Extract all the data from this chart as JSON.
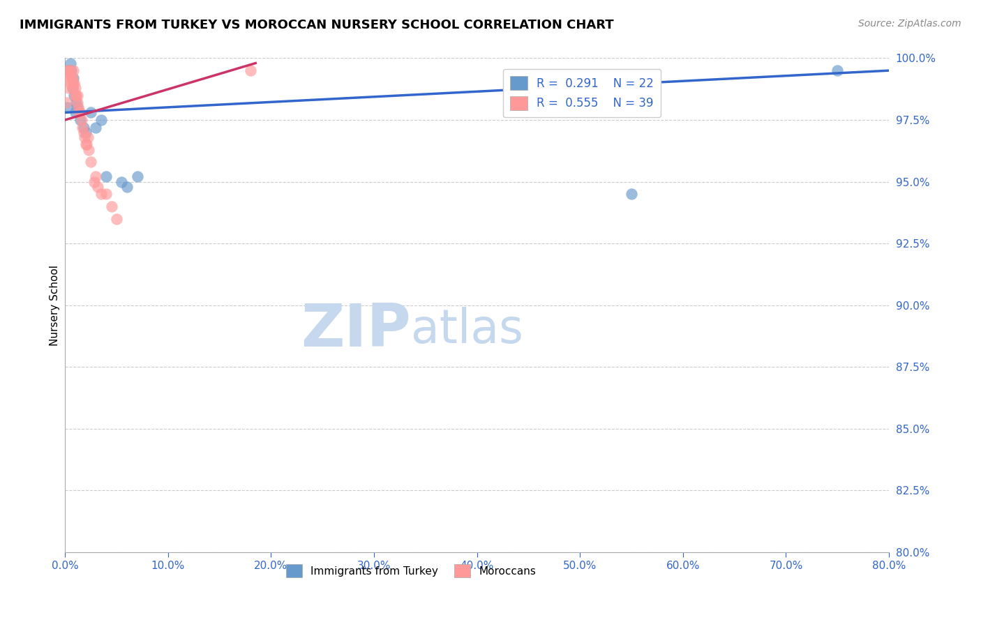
{
  "title": "IMMIGRANTS FROM TURKEY VS MOROCCAN NURSERY SCHOOL CORRELATION CHART",
  "source": "Source: ZipAtlas.com",
  "xlabel": "",
  "ylabel": "Nursery School",
  "xlim": [
    0.0,
    80.0
  ],
  "ylim": [
    80.0,
    100.0
  ],
  "yticks": [
    80.0,
    82.5,
    85.0,
    87.5,
    90.0,
    92.5,
    95.0,
    97.5,
    100.0
  ],
  "xticks": [
    0.0,
    10.0,
    20.0,
    30.0,
    40.0,
    50.0,
    60.0,
    70.0,
    80.0
  ],
  "blue_color": "#6699CC",
  "pink_color": "#FF9999",
  "blue_line_color": "#3366CC",
  "pink_line_color": "#CC3366",
  "R_blue": 0.291,
  "N_blue": 22,
  "R_pink": 0.555,
  "N_pink": 39,
  "blue_x": [
    0.2,
    0.4,
    0.5,
    0.6,
    0.7,
    0.8,
    0.9,
    1.0,
    1.1,
    1.2,
    1.5,
    1.8,
    2.0,
    2.5,
    3.0,
    3.5,
    4.0,
    5.5,
    6.0,
    7.0,
    55.0,
    75.0
  ],
  "blue_y": [
    98.0,
    99.5,
    99.8,
    99.5,
    98.8,
    99.2,
    98.5,
    97.8,
    98.2,
    98.0,
    97.5,
    97.2,
    97.0,
    97.8,
    97.2,
    97.5,
    95.2,
    95.0,
    94.8,
    95.2,
    94.5,
    99.5
  ],
  "pink_x": [
    0.1,
    0.2,
    0.3,
    0.3,
    0.4,
    0.4,
    0.5,
    0.5,
    0.6,
    0.7,
    0.7,
    0.8,
    0.8,
    0.9,
    1.0,
    1.0,
    1.1,
    1.2,
    1.2,
    1.3,
    1.4,
    1.5,
    1.6,
    1.7,
    1.8,
    1.9,
    2.0,
    2.1,
    2.2,
    2.3,
    2.5,
    2.8,
    3.0,
    3.2,
    3.5,
    4.0,
    4.5,
    5.0,
    18.0
  ],
  "pink_y": [
    98.2,
    99.5,
    99.3,
    98.8,
    99.5,
    99.2,
    99.5,
    99.0,
    99.3,
    99.2,
    98.8,
    99.5,
    99.0,
    99.0,
    98.8,
    98.5,
    98.5,
    98.2,
    98.5,
    98.0,
    97.8,
    97.8,
    97.5,
    97.2,
    97.0,
    96.8,
    96.5,
    96.5,
    96.8,
    96.3,
    95.8,
    95.0,
    95.2,
    94.8,
    94.5,
    94.5,
    94.0,
    93.5,
    99.5
  ],
  "watermark_top": "ZIP",
  "watermark_bottom": "atlas",
  "watermark_color_top": "#C5D8EE",
  "watermark_color_bottom": "#C5D8EE",
  "background_color": "#FFFFFF",
  "grid_color": "#CCCCCC",
  "trend_blue_x0": 0.0,
  "trend_blue_x1": 80.0,
  "trend_pink_x0": 0.0,
  "trend_pink_x1": 18.5
}
